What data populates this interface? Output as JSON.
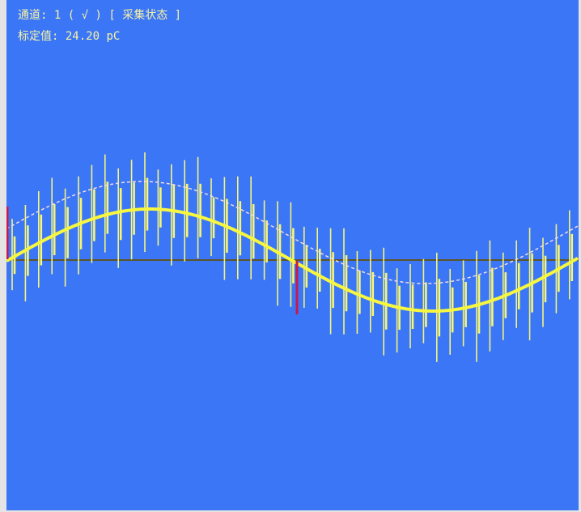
{
  "colors": {
    "background": "#3b76f7",
    "text": "#f7f3a3",
    "waveform": "#f7f73f",
    "spikes": "#f5f57a",
    "reference": "#f4dcdc",
    "axis": "#5d5428",
    "marker": "#c6194e"
  },
  "status": {
    "channel_label": "通道:",
    "channel_number": "1",
    "channel_check": "( √ )",
    "mode": "[ 采集状态 ]"
  },
  "calibration": {
    "label": "标定值:",
    "value": "24.20 pC"
  }
}
